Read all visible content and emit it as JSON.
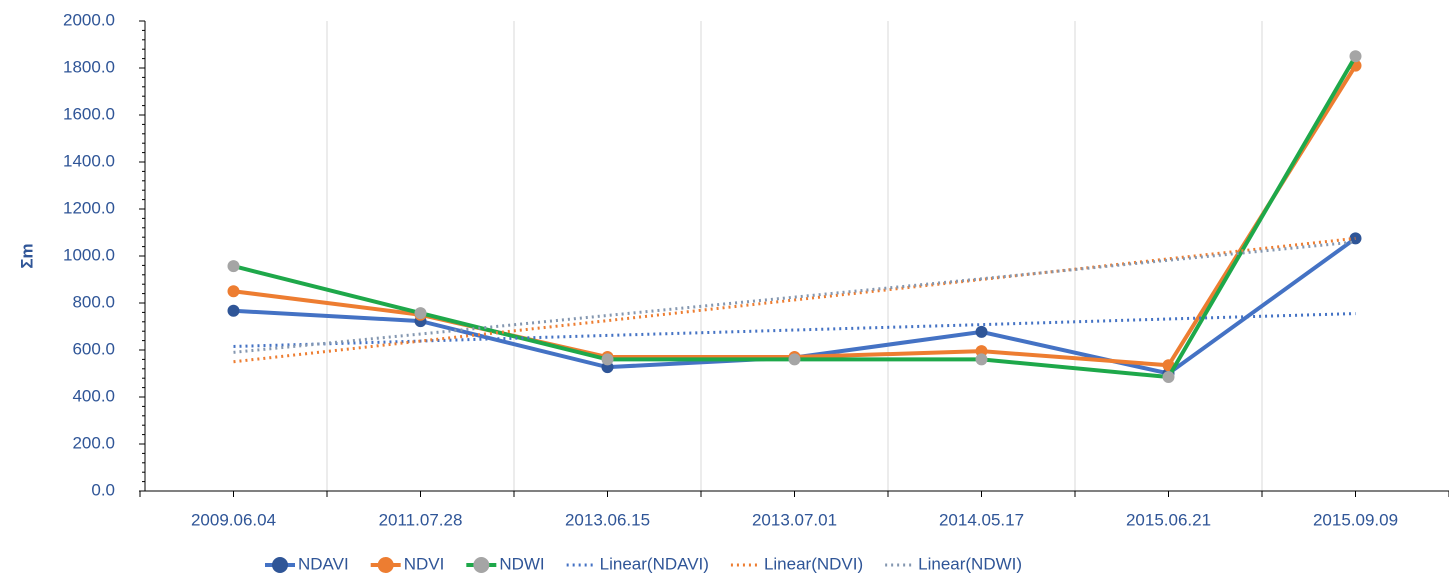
{
  "chart_data": {
    "type": "line",
    "ylabel": "Σm",
    "categories": [
      "2009.06.04",
      "2011.07.28",
      "2013.06.15",
      "2013.07.01",
      "2014.05.17",
      "2015.06.21",
      "2015.09.09"
    ],
    "series": [
      {
        "name": "NDAVI",
        "color": "#4472c4",
        "marker_color": "#2f5597",
        "values": [
          767,
          723,
          527,
          568,
          677,
          500,
          1075
        ]
      },
      {
        "name": "NDVI",
        "color": "#ed7d31",
        "marker_color": "#ed7d31",
        "values": [
          850,
          750,
          570,
          570,
          595,
          535,
          1810
        ]
      },
      {
        "name": "NDWI",
        "color": "#1ea84a",
        "marker_color": "#a5a5a5",
        "values": [
          957,
          757,
          560,
          560,
          560,
          485,
          1850
        ]
      },
      {
        "name": "Linear(NDAVI)",
        "color": "#4472c4",
        "dotted": true,
        "values": [
          615,
          638,
          662,
          685,
          708,
          732,
          755
        ]
      },
      {
        "name": "Linear(NDVI)",
        "color": "#ed7d31",
        "dotted": true,
        "values": [
          550,
          638,
          725,
          813,
          900,
          988,
          1075
        ]
      },
      {
        "name": "Linear(NDWI)",
        "color": "#8497b0",
        "dotted": true,
        "values": [
          590,
          668,
          747,
          825,
          903,
          982,
          1060
        ]
      }
    ],
    "ylim": [
      0,
      2000
    ],
    "yticks": [
      {
        "value": 0,
        "label": "0.0"
      },
      {
        "value": 200,
        "label": "200.0"
      },
      {
        "value": 400,
        "label": "400.0"
      },
      {
        "value": 600,
        "label": "600.0"
      },
      {
        "value": 800,
        "label": "800.0"
      },
      {
        "value": 1000,
        "label": "1000.0"
      },
      {
        "value": 1200,
        "label": "1200.0"
      },
      {
        "value": 1400,
        "label": "1400.0"
      },
      {
        "value": 1600,
        "label": "1600.0"
      },
      {
        "value": 1800,
        "label": "1800.0"
      },
      {
        "value": 2000,
        "label": "2000.0"
      }
    ],
    "grid": true,
    "legend": "bottom"
  }
}
